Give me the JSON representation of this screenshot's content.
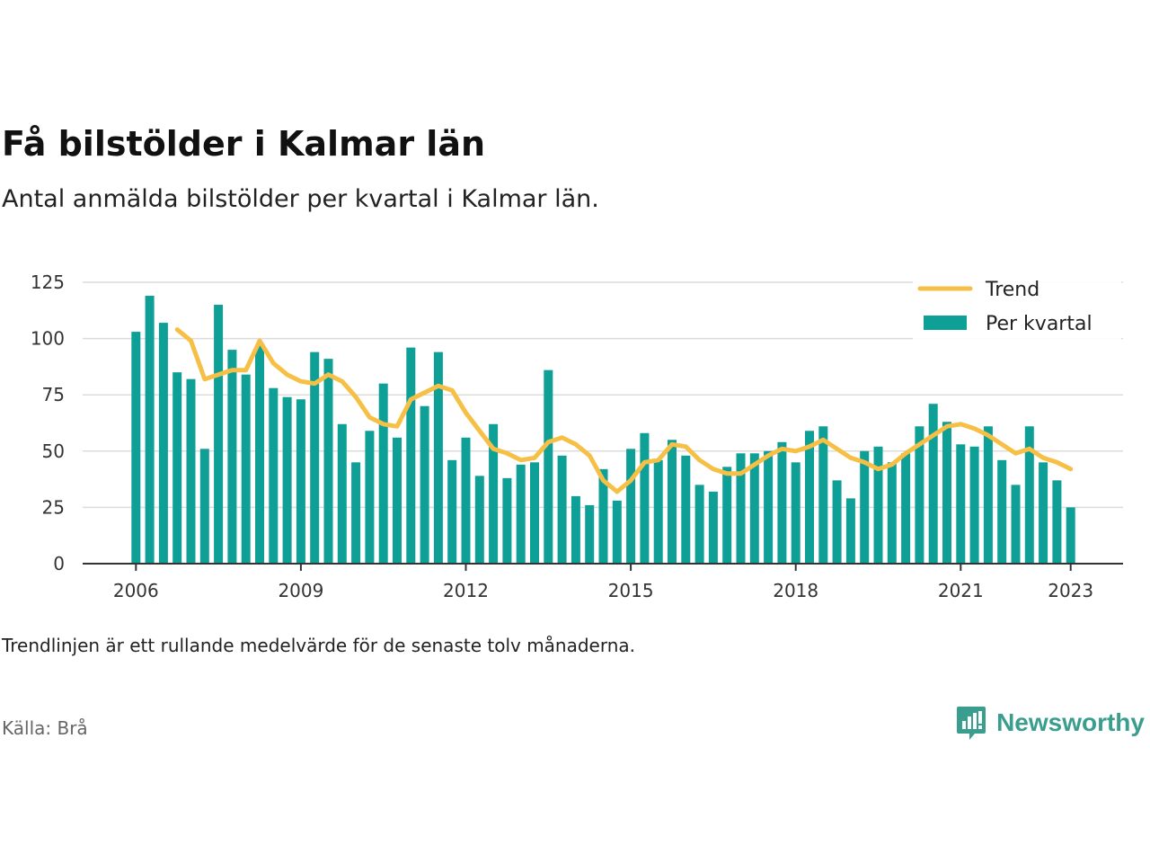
{
  "title": "Få bilstölder i Kalmar län",
  "subtitle": "Antal anmälda bilstölder per kvartal i Kalmar län.",
  "note": "Trendlinjen är ett rullande medelvärde för de senaste tolv månaderna.",
  "source": "Källa: Brå",
  "brand": {
    "name": "Newsworthy",
    "icon": "newsworthy-logo-icon",
    "color": "#3a9e8f"
  },
  "colors": {
    "bars": "#0e9f97",
    "trend": "#f6bf45",
    "grid": "#dcdcdc",
    "axis": "#333333"
  },
  "chart_data": {
    "type": "bar",
    "title": "Få bilstölder i Kalmar län",
    "xlabel": "",
    "ylabel": "",
    "ylim": [
      0,
      125
    ],
    "yticks": [
      0,
      25,
      50,
      75,
      100,
      125
    ],
    "xticks": [
      "2006",
      "2009",
      "2012",
      "2015",
      "2018",
      "2021",
      "2023"
    ],
    "grid": true,
    "legend_position": "top-right",
    "legend": [
      "Trend",
      "Per kvartal"
    ],
    "categories": [
      "2006 Q1",
      "2006 Q2",
      "2006 Q3",
      "2006 Q4",
      "2007 Q1",
      "2007 Q2",
      "2007 Q3",
      "2007 Q4",
      "2008 Q1",
      "2008 Q2",
      "2008 Q3",
      "2008 Q4",
      "2009 Q1",
      "2009 Q2",
      "2009 Q3",
      "2009 Q4",
      "2010 Q1",
      "2010 Q2",
      "2010 Q3",
      "2010 Q4",
      "2011 Q1",
      "2011 Q2",
      "2011 Q3",
      "2011 Q4",
      "2012 Q1",
      "2012 Q2",
      "2012 Q3",
      "2012 Q4",
      "2013 Q1",
      "2013 Q2",
      "2013 Q3",
      "2013 Q4",
      "2014 Q1",
      "2014 Q2",
      "2014 Q3",
      "2014 Q4",
      "2015 Q1",
      "2015 Q2",
      "2015 Q3",
      "2015 Q4",
      "2016 Q1",
      "2016 Q2",
      "2016 Q3",
      "2016 Q4",
      "2017 Q1",
      "2017 Q2",
      "2017 Q3",
      "2017 Q4",
      "2018 Q1",
      "2018 Q2",
      "2018 Q3",
      "2018 Q4",
      "2019 Q1",
      "2019 Q2",
      "2019 Q3",
      "2019 Q4",
      "2020 Q1",
      "2020 Q2",
      "2020 Q3",
      "2020 Q4",
      "2021 Q1",
      "2021 Q2",
      "2021 Q3",
      "2021 Q4",
      "2022 Q1",
      "2022 Q2",
      "2022 Q3",
      "2022 Q4",
      "2023 Q1"
    ],
    "series": [
      {
        "name": "Per kvartal",
        "type": "bar",
        "values": [
          103,
          119,
          107,
          85,
          82,
          51,
          115,
          95,
          84,
          97,
          78,
          74,
          73,
          94,
          91,
          62,
          45,
          59,
          80,
          56,
          96,
          70,
          94,
          46,
          56,
          39,
          62,
          38,
          44,
          45,
          86,
          48,
          30,
          26,
          42,
          28,
          51,
          58,
          46,
          55,
          48,
          35,
          32,
          43,
          49,
          49,
          50,
          54,
          45,
          59,
          61,
          37,
          29,
          50,
          52,
          45,
          49,
          61,
          71,
          63,
          53,
          52,
          61,
          46,
          35,
          61,
          45,
          37,
          25
        ]
      },
      {
        "name": "Trend",
        "type": "line",
        "values": [
          null,
          null,
          null,
          104,
          99,
          82,
          84,
          86,
          86,
          99,
          89,
          84,
          81,
          80,
          84,
          81,
          74,
          65,
          62,
          61,
          73,
          76,
          79,
          77,
          67,
          59,
          51,
          49,
          46,
          47,
          54,
          56,
          53,
          48,
          37,
          32,
          37,
          45,
          46,
          53,
          52,
          46,
          42,
          40,
          40,
          44,
          48,
          51,
          50,
          52,
          55,
          51,
          47,
          45,
          42,
          44,
          49,
          53,
          57,
          61,
          62,
          60,
          57,
          53,
          49,
          51,
          47,
          45,
          42
        ]
      }
    ]
  }
}
